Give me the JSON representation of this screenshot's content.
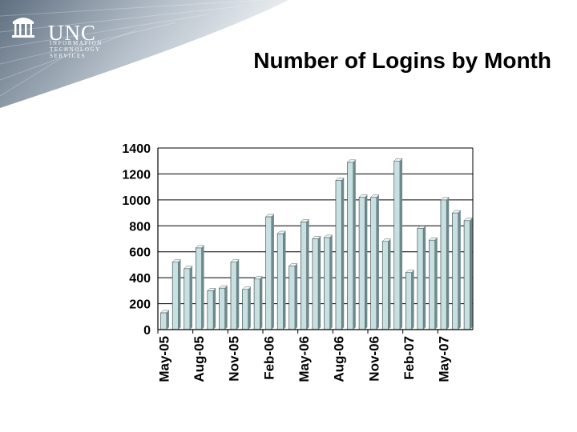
{
  "slide": {
    "title": "Number of Logins by Month",
    "logo_name": "UNC",
    "logo_line1": "INFORMATION",
    "logo_line2": "TECHNOLOGY SERVICES"
  },
  "colors": {
    "bar_face": "#c8e0e2",
    "bar_side": "#6f8a8c",
    "grid": "#000000",
    "banner_dark": "#5f6f80",
    "banner_light": "#c9d1d8"
  },
  "chart_data": {
    "type": "bar",
    "title": "Number of Logins by Month",
    "xlabel": "",
    "ylabel": "",
    "ylim": [
      0,
      1400
    ],
    "yticks": [
      0,
      200,
      400,
      600,
      800,
      1000,
      1200,
      1400
    ],
    "grid": true,
    "legend": "none",
    "x_tick_labels": [
      "May-05",
      "Aug-05",
      "Nov-05",
      "Feb-06",
      "May-06",
      "Aug-06",
      "Nov-06",
      "Feb-07",
      "May-07"
    ],
    "categories": [
      "May-05",
      "Jun-05",
      "Jul-05",
      "Aug-05",
      "Sep-05",
      "Oct-05",
      "Nov-05",
      "Dec-05",
      "Jan-06",
      "Feb-06",
      "Mar-06",
      "Apr-06",
      "May-06",
      "Jun-06",
      "Jul-06",
      "Aug-06",
      "Sep-06",
      "Oct-06",
      "Nov-06",
      "Dec-06",
      "Jan-07",
      "Feb-07",
      "Mar-07",
      "Apr-07",
      "May-07",
      "Jun-07",
      "Jul-07"
    ],
    "values": [
      130,
      520,
      470,
      630,
      300,
      320,
      520,
      310,
      390,
      870,
      740,
      490,
      830,
      700,
      710,
      1150,
      1290,
      1020,
      1020,
      680,
      1300,
      440,
      780,
      690,
      1000,
      900,
      840
    ]
  }
}
